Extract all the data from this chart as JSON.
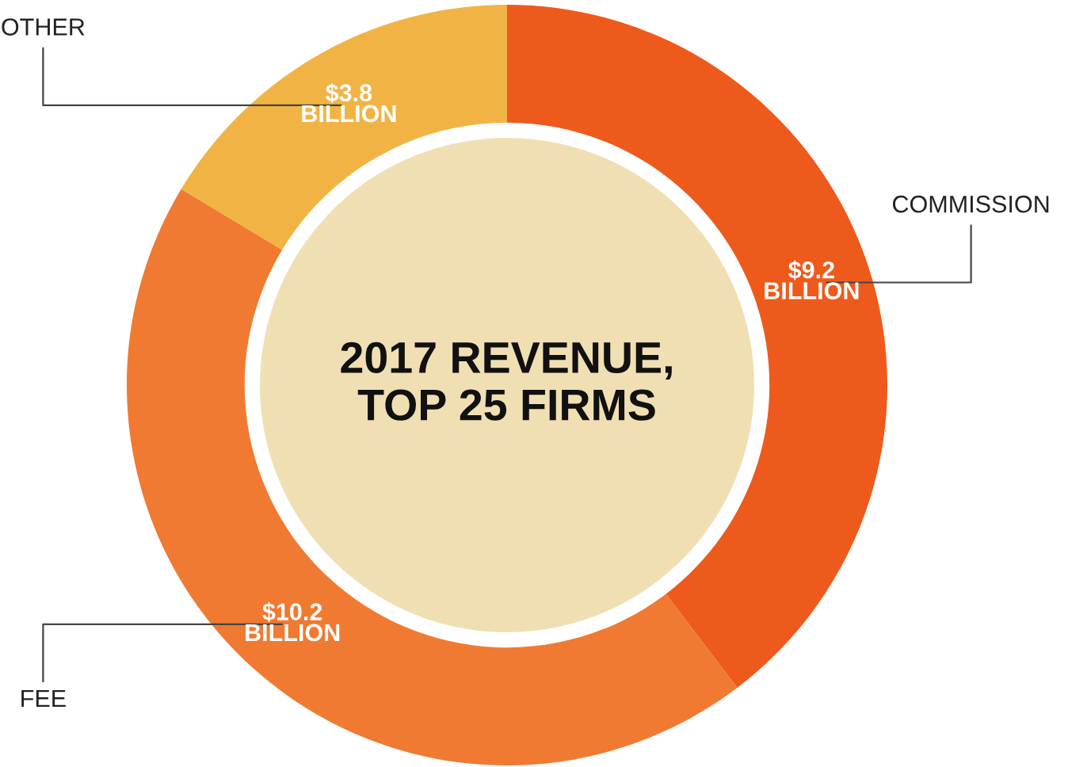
{
  "chart_data": {
    "type": "donut",
    "title": "2017 REVENUE,\nTOP 25 FIRMS",
    "categories": [
      "COMMISSION",
      "FEE",
      "OTHER"
    ],
    "values": [
      9.2,
      10.2,
      3.8
    ],
    "colors": [
      "#ee5a1c",
      "#f07a32",
      "#f1b444"
    ],
    "value_labels": [
      "$9.2\nBILLION",
      "$10.2\nBILLION",
      "$3.8\nBILLION"
    ]
  }
}
